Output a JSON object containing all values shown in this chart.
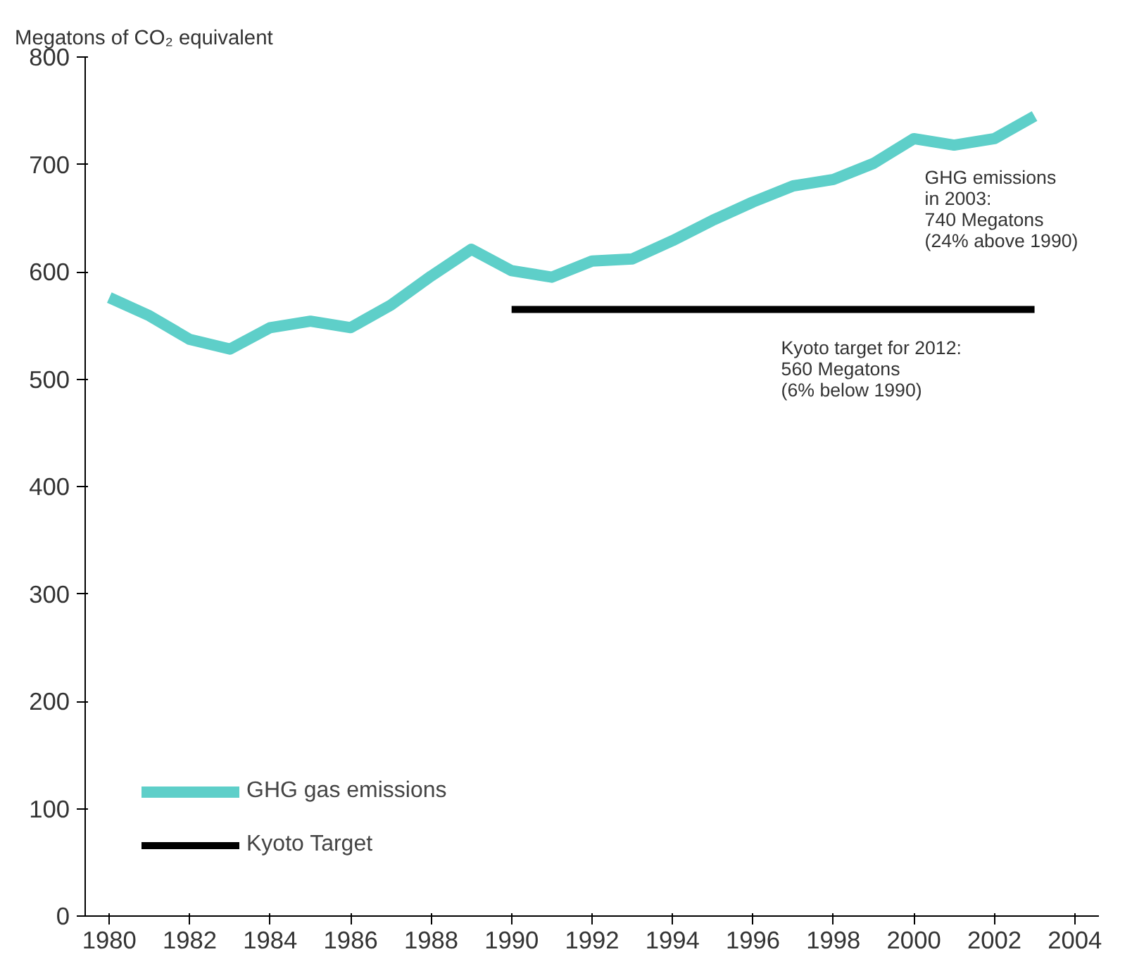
{
  "chart_data": {
    "type": "line",
    "ylabel": "Megatons of CO₂ equivalent",
    "xlim": [
      1979.4,
      2004.6
    ],
    "xticks": [
      1980,
      1982,
      1984,
      1986,
      1988,
      1990,
      1992,
      1994,
      1996,
      1998,
      2000,
      2002,
      2004
    ],
    "ylim": [
      0,
      800
    ],
    "yticks": [
      0,
      100,
      200,
      300,
      400,
      500,
      600,
      700,
      800
    ],
    "x": [
      1980,
      1981,
      1982,
      1983,
      1984,
      1985,
      1986,
      1987,
      1988,
      1989,
      1990,
      1991,
      1992,
      1993,
      1994,
      1995,
      1996,
      1997,
      1998,
      1999,
      2000,
      2001,
      2002,
      2003
    ],
    "series": [
      {
        "name": "GHG gas emissions",
        "color": "#5ecfc9",
        "values": [
          576,
          559,
          537,
          528,
          548,
          554,
          548,
          569,
          596,
          621,
          601,
          595,
          610,
          612,
          629,
          648,
          665,
          680,
          686,
          701,
          724,
          718,
          724,
          745
        ]
      },
      {
        "name": "Kyoto Target",
        "color": "#000000",
        "x": [
          1990,
          2003
        ],
        "values": [
          565,
          565
        ]
      }
    ],
    "annotations": [
      {
        "text": "GHG emissions\nin 2003:\n740 Megatons\n(24% above 1990)",
        "x": 2003,
        "y": 745
      },
      "Kyoto target for 2012:\n560 Megatons\n(6% below 1990)"
    ],
    "grid": false,
    "legend": "bottom left",
    "marker": "none",
    "line_style": "solid"
  }
}
